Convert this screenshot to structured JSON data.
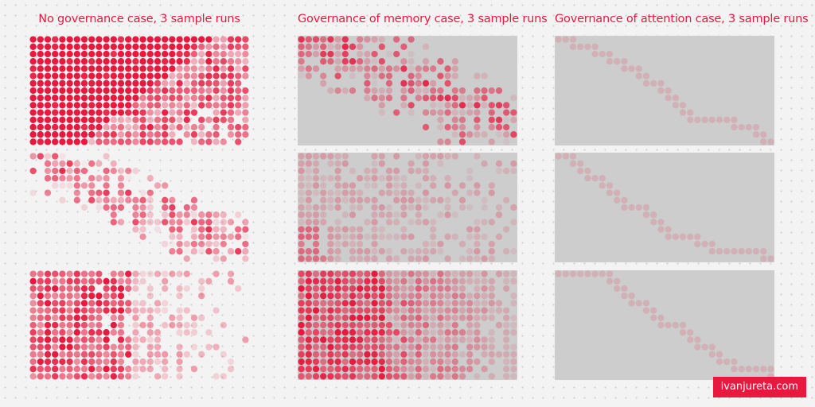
{
  "colors": {
    "accent": "#e8183e",
    "panel_gray": "#cdcdcd",
    "background": "#f3f3f3"
  },
  "chart_data": [
    {
      "type": "heatmap",
      "title": "No governance case, 3 sample runs",
      "grid": {
        "columns": 30,
        "rows": 15
      },
      "background": "none",
      "runs": [
        {
          "pattern": "dense-top-left",
          "coverage": 0.86
        },
        {
          "pattern": "sparse-diagonal",
          "coverage": 0.55
        },
        {
          "pattern": "dense-left",
          "coverage": 0.68
        }
      ]
    },
    {
      "type": "heatmap",
      "title": "Governance of memory case, 3 sample runs",
      "grid": {
        "columns": 30,
        "rows": 15
      },
      "background": "#cdcdcd",
      "runs": [
        {
          "pattern": "diagonal-band",
          "coverage": 0.6
        },
        {
          "pattern": "faint-maze",
          "coverage": 0.6
        },
        {
          "pattern": "dense-left-right-fade",
          "coverage": 0.9
        }
      ]
    },
    {
      "type": "heatmap",
      "title": "Governance of attention case, 3 sample runs",
      "grid": {
        "columns": 30,
        "rows": 15
      },
      "background": "#cdcdcd",
      "runs": [
        {
          "pattern": "staircase-path"
        },
        {
          "pattern": "staircase-path"
        },
        {
          "pattern": "staircase-path"
        }
      ]
    }
  ],
  "brand": {
    "label": "ivanjureta.com"
  }
}
